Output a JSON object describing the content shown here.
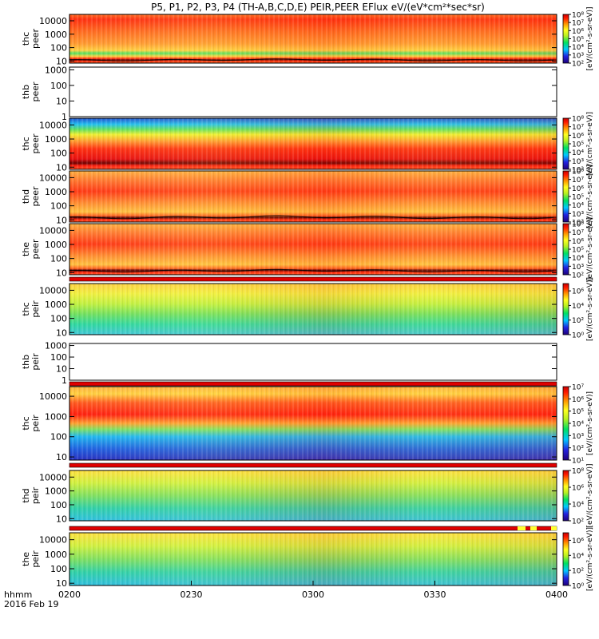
{
  "title": "P5, P1, P2, P3, P4 (TH-A,B,C,D,E) PEIR,PEER EFlux eV/(eV*cm²*sec*sr)",
  "colors": {
    "background": "#ffffff",
    "axis": "#000000",
    "spectrogram_low": "#2a3cc8",
    "spectrogram_mid": "#35e070",
    "spectrogram_high": "#e81515",
    "flag_red": "#e00000",
    "flag_yellow": "#ffff30"
  },
  "chart_data": {
    "type": "heatmap",
    "x_axis": {
      "tick_labels": [
        "0200",
        "0230",
        "0300",
        "0330",
        "0400"
      ],
      "range": [
        "02:00",
        "04:00"
      ],
      "corner_label": "hhmm",
      "date_label": "2016 Feb 19"
    },
    "colorbar_label": "[eV/(cm²-s-sr-eV)]",
    "panels": [
      {
        "id": "thc_peer_top",
        "ylabel_line1": "thc",
        "ylabel_line2": "peer",
        "has_data": true,
        "y_ticks": [
          "10",
          "100",
          "1000",
          "10000"
        ],
        "y_range": [
          7,
          30000
        ],
        "log_scale": true,
        "colorbar_ticks": [
          "10²",
          "10³",
          "10⁴",
          "10⁵",
          "10⁶",
          "10⁷",
          "10⁸"
        ],
        "z_range": [
          100,
          100000000
        ]
      },
      {
        "id": "thb_peer",
        "ylabel_line1": "thb",
        "ylabel_line2": "peer",
        "has_data": false,
        "y_ticks": [
          "1",
          "10",
          "100",
          "1000"
        ],
        "y_range": [
          1,
          1500
        ],
        "log_scale": true,
        "colorbar_ticks": [],
        "z_range": null
      },
      {
        "id": "thc_peer",
        "ylabel_line1": "thc",
        "ylabel_line2": "peer",
        "has_data": true,
        "y_ticks": [
          "10",
          "100",
          "1000",
          "10000"
        ],
        "y_range": [
          7,
          30000
        ],
        "log_scale": true,
        "colorbar_ticks": [
          "10²",
          "10³",
          "10⁴",
          "10⁵",
          "10⁶",
          "10⁷",
          "10⁸"
        ],
        "z_range": [
          100,
          100000000
        ]
      },
      {
        "id": "thd_peer",
        "ylabel_line1": "thd",
        "ylabel_line2": "peer",
        "has_data": true,
        "y_ticks": [
          "10",
          "100",
          "1000",
          "10000"
        ],
        "y_range": [
          7,
          30000
        ],
        "log_scale": true,
        "colorbar_ticks": [
          "10²",
          "10³",
          "10⁴",
          "10⁵",
          "10⁶",
          "10⁷",
          "10⁸"
        ],
        "z_range": [
          100,
          100000000
        ]
      },
      {
        "id": "the_peer",
        "ylabel_line1": "the",
        "ylabel_line2": "peer",
        "has_data": true,
        "y_ticks": [
          "10",
          "100",
          "1000",
          "10000"
        ],
        "y_range": [
          7,
          30000
        ],
        "log_scale": true,
        "colorbar_ticks": [
          "10²",
          "10³",
          "10⁴",
          "10⁵",
          "10⁶",
          "10⁷",
          "10⁸"
        ],
        "z_range": [
          100,
          100000000
        ]
      },
      {
        "id": "thc_peir_top",
        "ylabel_line1": "thc",
        "ylabel_line2": "peir",
        "has_data": true,
        "y_ticks": [
          "10",
          "100",
          "1000",
          "10000"
        ],
        "y_range": [
          7,
          30000
        ],
        "log_scale": true,
        "colorbar_ticks": [
          "10⁰",
          "10²",
          "10⁴",
          "10⁶"
        ],
        "z_range": [
          1,
          10000000
        ]
      },
      {
        "id": "thb_peir",
        "ylabel_line1": "thb",
        "ylabel_line2": "peir",
        "has_data": false,
        "y_ticks": [
          "1",
          "10",
          "100",
          "1000"
        ],
        "y_range": [
          1,
          1500
        ],
        "log_scale": true,
        "colorbar_ticks": [],
        "z_range": null
      },
      {
        "id": "thc_peir",
        "ylabel_line1": "thc",
        "ylabel_line2": "peir",
        "has_data": true,
        "y_ticks": [
          "10",
          "100",
          "1000",
          "10000"
        ],
        "y_range": [
          7,
          30000
        ],
        "log_scale": true,
        "colorbar_ticks": [
          "10¹",
          "10²",
          "10³",
          "10⁴",
          "10⁵",
          "10⁶",
          "10⁷"
        ],
        "z_range": [
          10,
          10000000
        ]
      },
      {
        "id": "thd_peir",
        "ylabel_line1": "thd",
        "ylabel_line2": "peir",
        "has_data": true,
        "y_ticks": [
          "10",
          "100",
          "1000",
          "10000"
        ],
        "y_range": [
          7,
          30000
        ],
        "log_scale": true,
        "colorbar_ticks": [
          "10²",
          "10⁴",
          "10⁶",
          "10⁸"
        ],
        "z_range": [
          100,
          100000000
        ]
      },
      {
        "id": "the_peir",
        "ylabel_line1": "the",
        "ylabel_line2": "peir",
        "has_data": true,
        "y_ticks": [
          "10",
          "100",
          "1000",
          "10000"
        ],
        "y_range": [
          7,
          30000
        ],
        "log_scale": true,
        "colorbar_ticks": [
          "10⁰",
          "10²",
          "10⁴",
          "10⁶"
        ],
        "z_range": [
          1,
          10000000
        ]
      }
    ]
  }
}
